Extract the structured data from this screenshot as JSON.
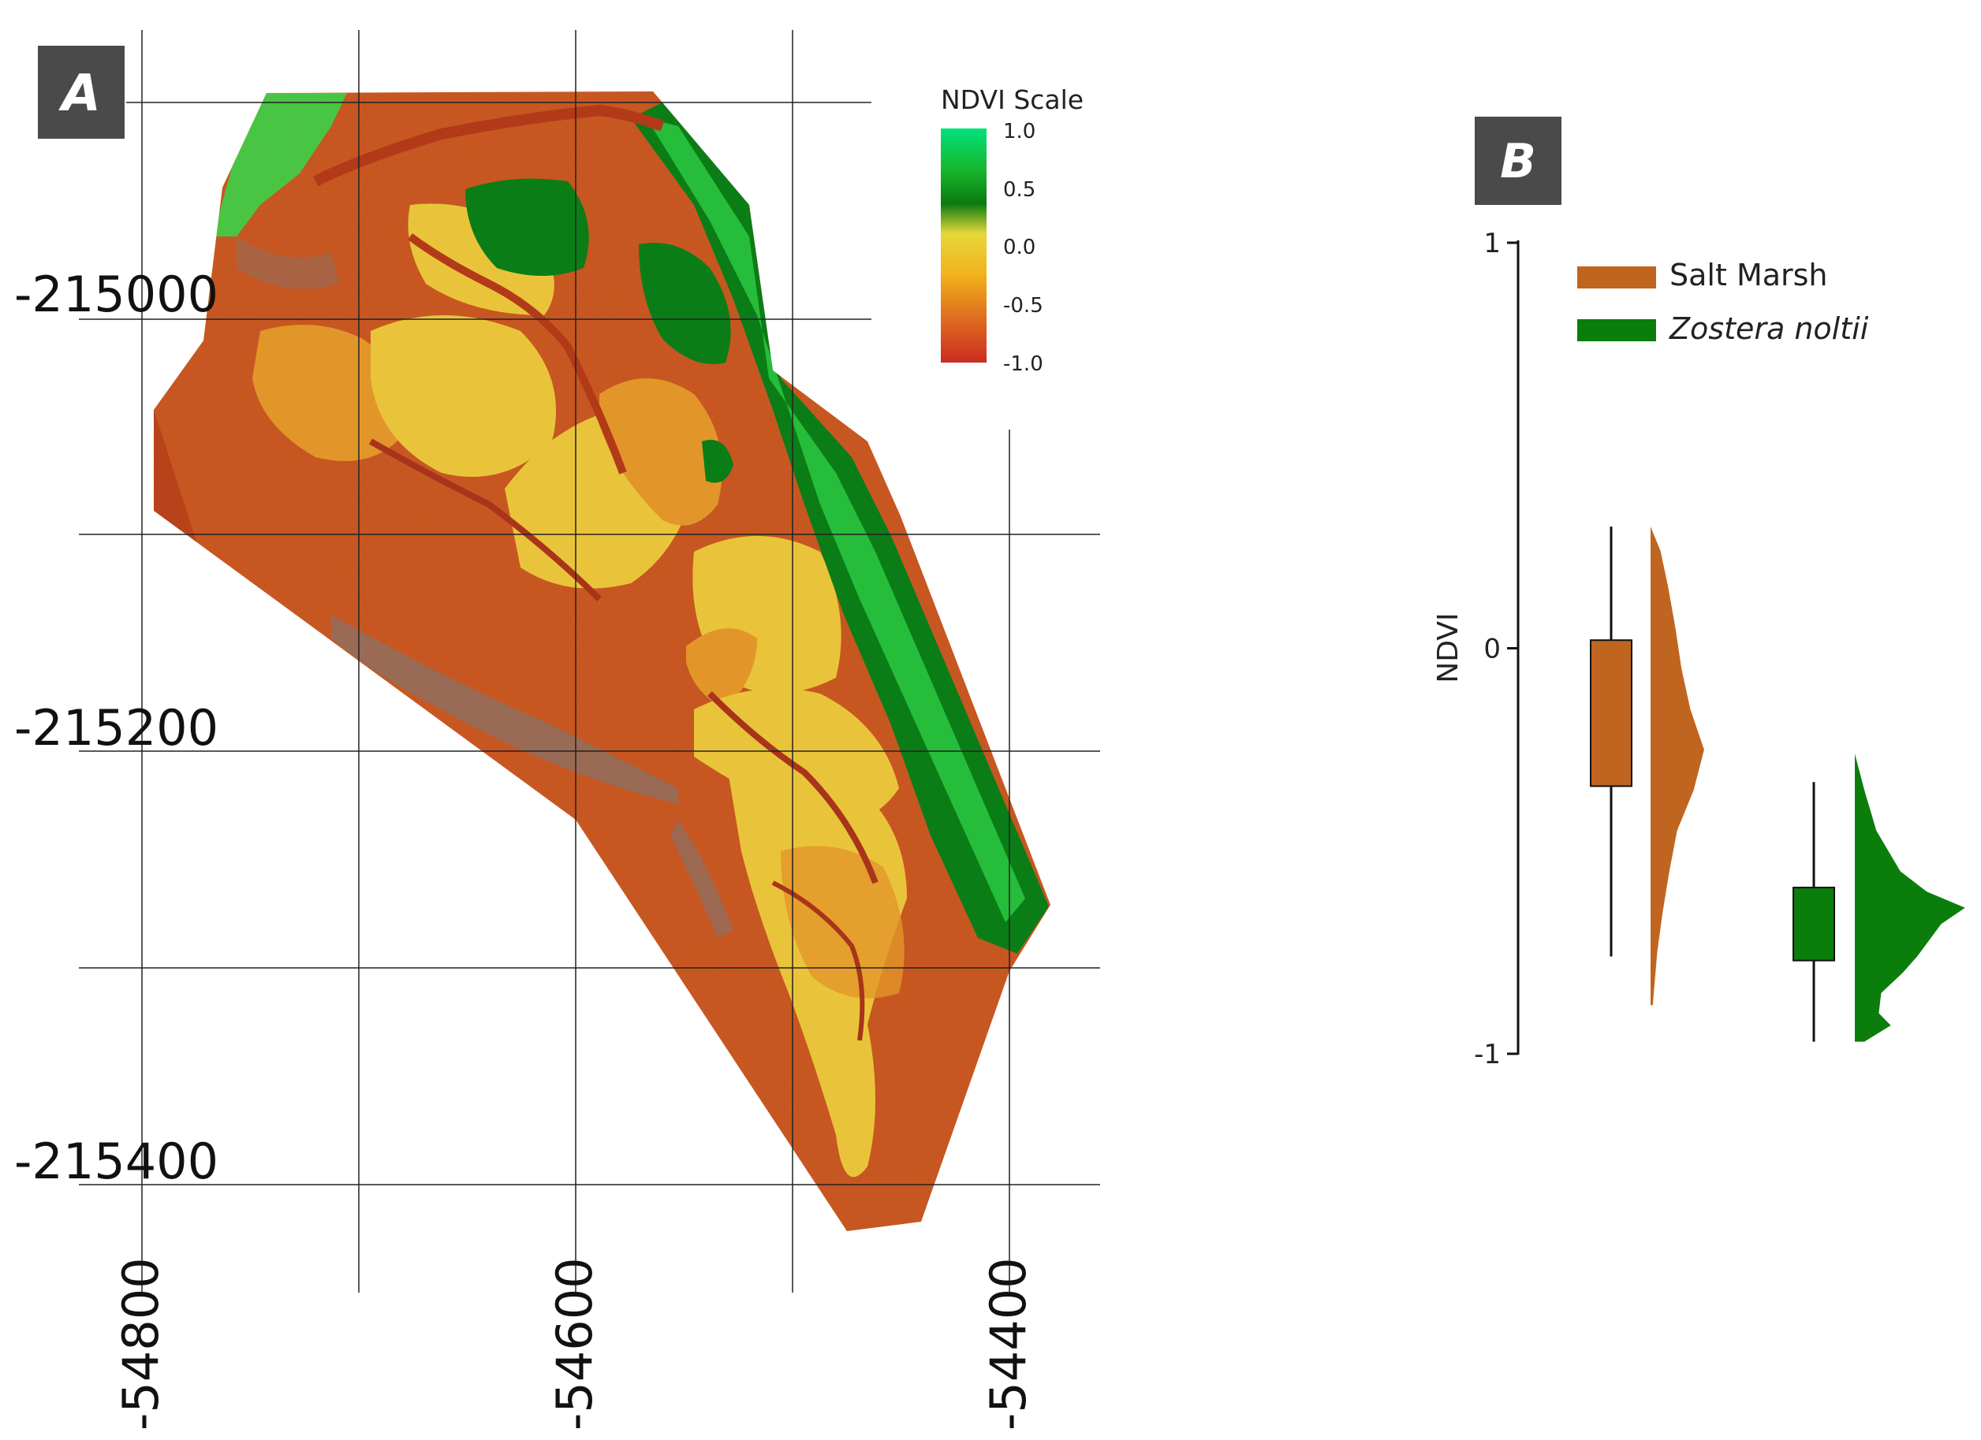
{
  "panel_a": {
    "label": "A",
    "legend": {
      "title": "NDVI Scale",
      "ticks": [
        "1.0",
        "0.5",
        "0.0",
        "-0.5",
        "-1.0"
      ],
      "colors": [
        "#00e27a",
        "#17b52c",
        "#0a7a10",
        "#e6d83a",
        "#f2b31c",
        "#e0711f",
        "#cc2b1f"
      ]
    },
    "y_ticks": [
      "-215000",
      "-215200",
      "-215400"
    ],
    "x_ticks": [
      "-54800",
      "-54600",
      "-54400"
    ],
    "map_colors": {
      "mudflat": "#c8501d",
      "mudflat_dark": "#b23a18",
      "marsh_yellow": "#e9c43a",
      "marsh_orange": "#e2962a",
      "veg_green": "#0b7d17",
      "veg_bright": "#32d84a",
      "water_grey": "#7a7878"
    }
  },
  "panel_b": {
    "label": "B",
    "chart_data": {
      "type": "box-and-half-violin",
      "ylabel": "NDVI",
      "ylim": [
        -1,
        1
      ],
      "yticks": [
        1,
        0,
        -1
      ],
      "grid": false,
      "legend_position": "top-right",
      "series": [
        {
          "name": "Salt Marsh",
          "color": "#c0651f",
          "box": {
            "q1": -0.34,
            "q3": 0.02,
            "whisker_low": -0.76,
            "whisker_high": 0.3
          },
          "density": [
            [
              0.3,
              0.0
            ],
            [
              0.24,
              0.18
            ],
            [
              0.15,
              0.32
            ],
            [
              0.05,
              0.45
            ],
            [
              -0.05,
              0.56
            ],
            [
              -0.15,
              0.72
            ],
            [
              -0.25,
              0.97
            ],
            [
              -0.35,
              0.78
            ],
            [
              -0.45,
              0.48
            ],
            [
              -0.55,
              0.34
            ],
            [
              -0.65,
              0.22
            ],
            [
              -0.75,
              0.12
            ],
            [
              -0.88,
              0.04
            ]
          ]
        },
        {
          "name": "Zostera noltii",
          "italic": true,
          "color": "#0b7d0b",
          "box": {
            "q1": -0.77,
            "q3": -0.59,
            "whisker_low": -0.97,
            "whisker_high": -0.33
          },
          "density": [
            [
              -0.26,
              0.0
            ],
            [
              -0.35,
              0.08
            ],
            [
              -0.45,
              0.18
            ],
            [
              -0.55,
              0.38
            ],
            [
              -0.6,
              0.6
            ],
            [
              -0.64,
              0.92
            ],
            [
              -0.68,
              0.72
            ],
            [
              -0.72,
              0.62
            ],
            [
              -0.76,
              0.52
            ],
            [
              -0.8,
              0.4
            ],
            [
              -0.85,
              0.22
            ],
            [
              -0.9,
              0.2
            ],
            [
              -0.93,
              0.3
            ],
            [
              -0.97,
              0.08
            ]
          ]
        }
      ]
    }
  }
}
